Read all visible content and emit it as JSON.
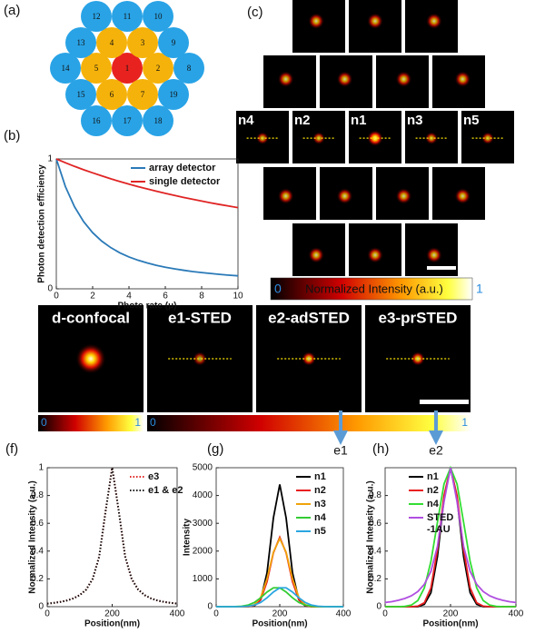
{
  "panel_labels": {
    "a": "(a)",
    "b": "(b)",
    "c": "(c)",
    "f": "(f)",
    "g": "(g)",
    "h": "(h)"
  },
  "detectors": [
    {
      "label": "1",
      "color": "#e8231f"
    },
    {
      "label": "2",
      "color": "#f5b20a"
    },
    {
      "label": "3",
      "color": "#f5b20a"
    },
    {
      "label": "4",
      "color": "#f5b20a"
    },
    {
      "label": "5",
      "color": "#f5b20a"
    },
    {
      "label": "6",
      "color": "#f5b20a"
    },
    {
      "label": "7",
      "color": "#f5b20a"
    },
    {
      "label": "8",
      "color": "#29a3e6"
    },
    {
      "label": "9",
      "color": "#29a3e6"
    },
    {
      "label": "10",
      "color": "#29a3e6"
    },
    {
      "label": "11",
      "color": "#29a3e6"
    },
    {
      "label": "12",
      "color": "#29a3e6"
    },
    {
      "label": "13",
      "color": "#29a3e6"
    },
    {
      "label": "14",
      "color": "#29a3e6"
    },
    {
      "label": "15",
      "color": "#29a3e6"
    },
    {
      "label": "16",
      "color": "#29a3e6"
    },
    {
      "label": "17",
      "color": "#29a3e6"
    },
    {
      "label": "18",
      "color": "#29a3e6"
    },
    {
      "label": "19",
      "color": "#29a3e6"
    }
  ],
  "psf_grid": {
    "labels": [
      "n4",
      "n2",
      "n1",
      "n3",
      "n5"
    ],
    "colorbar": {
      "min": "0",
      "title": "Normalized Intensity (a.u.)",
      "max": "1"
    }
  },
  "sted_images": {
    "labels": [
      "d-confocal",
      "e1-STED",
      "e2-adSTED",
      "e3-prSTED"
    ],
    "colorbars": [
      {
        "min": "0",
        "max": "1"
      },
      {
        "min": "0",
        "max": "1"
      }
    ],
    "arrows": [
      "e1",
      "e2"
    ]
  },
  "chart_data": [
    {
      "type": "line",
      "xlabel": "Photo rate (μ)",
      "ylabel": "Photon detection efficiency",
      "xlim": [
        0,
        10
      ],
      "ylim": [
        0,
        1
      ],
      "xticks": [
        0,
        2,
        4,
        6,
        8,
        10
      ],
      "yticks": [
        0,
        1
      ],
      "legend": "upper right",
      "x": [
        0,
        0.5,
        1,
        1.5,
        2,
        2.5,
        3,
        3.5,
        4,
        4.5,
        5,
        5.5,
        6,
        6.5,
        7,
        7.5,
        8,
        8.5,
        9,
        9.5,
        10
      ],
      "series": [
        {
          "name": "array detector",
          "color": "#2a7ab8",
          "values": [
            1,
            0.787,
            0.632,
            0.518,
            0.432,
            0.367,
            0.317,
            0.277,
            0.245,
            0.22,
            0.199,
            0.181,
            0.166,
            0.154,
            0.143,
            0.133,
            0.125,
            0.118,
            0.111,
            0.105,
            0.1
          ]
        },
        {
          "name": "single detector",
          "color": "#e02424",
          "values": [
            1,
            0.971,
            0.943,
            0.917,
            0.893,
            0.87,
            0.847,
            0.826,
            0.806,
            0.787,
            0.769,
            0.752,
            0.735,
            0.719,
            0.704,
            0.69,
            0.676,
            0.662,
            0.649,
            0.637,
            0.625
          ]
        }
      ]
    },
    {
      "type": "line",
      "xlabel": "Position(nm)",
      "ylabel": "Normalized Intensity (a.u.)",
      "xlim": [
        0,
        400
      ],
      "ylim": [
        0,
        1
      ],
      "xticks": [
        0,
        200,
        400
      ],
      "yticks": [
        0,
        0.2,
        0.4,
        0.6,
        0.8,
        1
      ],
      "legend": "upper right",
      "x": [
        0,
        20,
        40,
        60,
        80,
        100,
        120,
        140,
        160,
        180,
        200,
        220,
        240,
        260,
        280,
        300,
        320,
        340,
        360,
        380,
        400
      ],
      "series": [
        {
          "name": "e3",
          "color": "#e02424",
          "style": "dotted",
          "values": [
            0.022,
            0.027,
            0.034,
            0.044,
            0.059,
            0.083,
            0.123,
            0.2,
            0.36,
            0.692,
            1,
            0.692,
            0.36,
            0.2,
            0.123,
            0.083,
            0.059,
            0.044,
            0.034,
            0.027,
            0.022
          ]
        },
        {
          "name": "e1 & e2",
          "color": "#111111",
          "style": "dotted",
          "values": [
            0.022,
            0.027,
            0.034,
            0.044,
            0.059,
            0.083,
            0.123,
            0.2,
            0.36,
            0.692,
            1,
            0.692,
            0.36,
            0.2,
            0.123,
            0.083,
            0.059,
            0.044,
            0.034,
            0.027,
            0.022
          ]
        }
      ]
    },
    {
      "type": "line",
      "xlabel": "Position(nm)",
      "ylabel": "Intensity",
      "xlim": [
        0,
        400
      ],
      "ylim": [
        0,
        5000
      ],
      "xticks": [
        0,
        200,
        400
      ],
      "yticks": [
        0,
        1000,
        2000,
        3000,
        4000,
        5000
      ],
      "legend": "upper right",
      "x": [
        0,
        20,
        40,
        60,
        80,
        100,
        120,
        140,
        160,
        180,
        200,
        220,
        240,
        260,
        280,
        300,
        320,
        340,
        360,
        380,
        400
      ],
      "series": [
        {
          "name": "n1",
          "color": "#000000",
          "values": [
            0,
            0,
            0,
            0,
            0,
            1,
            26,
            246,
            1223,
            3194,
            4400,
            3194,
            1223,
            246,
            26,
            1,
            0,
            0,
            0,
            0,
            0
          ]
        },
        {
          "name": "n2",
          "color": "#e82020",
          "values": [
            0,
            0,
            0,
            0,
            0,
            0,
            42,
            250,
            900,
            1937,
            2500,
            1937,
            900,
            250,
            42,
            0,
            0,
            0,
            0,
            0,
            0
          ]
        },
        {
          "name": "n3",
          "color": "#f0a30a",
          "values": [
            0,
            0,
            0,
            0,
            0,
            10,
            69,
            332,
            1007,
            1961,
            2450,
            1961,
            1007,
            332,
            69,
            10,
            0,
            0,
            0,
            0,
            0
          ]
        },
        {
          "name": "n4",
          "color": "#33cc33",
          "values": [
            0,
            0,
            0,
            4,
            16,
            56,
            151,
            321,
            528,
            678,
            678,
            528,
            321,
            151,
            56,
            16,
            4,
            0,
            0,
            0,
            0
          ]
        },
        {
          "name": "n5",
          "color": "#2aa6e0",
          "values": [
            0,
            0,
            0,
            0,
            4,
            16,
            56,
            151,
            321,
            528,
            678,
            678,
            528,
            321,
            151,
            56,
            16,
            4,
            0,
            0,
            0
          ]
        }
      ]
    },
    {
      "type": "line",
      "xlabel": "Position(nm)",
      "ylabel": "Normalized Intensity (a.u.)",
      "xlim": [
        0,
        400
      ],
      "ylim": [
        0,
        1
      ],
      "xticks": [
        0,
        200,
        400
      ],
      "yticks": [
        0,
        0.2,
        0.4,
        0.6,
        0.8
      ],
      "legend": "upper right",
      "x": [
        0,
        20,
        40,
        60,
        80,
        100,
        120,
        140,
        160,
        180,
        200,
        220,
        240,
        260,
        280,
        300,
        320,
        340,
        360,
        380,
        400
      ],
      "series": [
        {
          "name": "n1",
          "color": "#000000",
          "values": [
            0,
            0,
            0,
            0,
            0,
            0,
            0.017,
            0.1,
            0.36,
            0.775,
            1,
            0.775,
            0.36,
            0.1,
            0.017,
            0,
            0,
            0,
            0,
            0,
            0
          ]
        },
        {
          "name": "n2",
          "color": "#e82020",
          "values": [
            0,
            0,
            0,
            0,
            0,
            0.004,
            0.028,
            0.135,
            0.41,
            0.8,
            1,
            0.8,
            0.41,
            0.135,
            0.028,
            0.004,
            0,
            0,
            0,
            0,
            0
          ]
        },
        {
          "name": "n4",
          "color": "#33dd33",
          "values": [
            0,
            0,
            0,
            0.002,
            0.011,
            0.044,
            0.135,
            0.325,
            0.607,
            0.882,
            1,
            0.882,
            0.607,
            0.325,
            0.135,
            0.044,
            0.011,
            0.002,
            0,
            0,
            0
          ]
        },
        {
          "name": "STED\n-1AU",
          "color": "#b04ee0",
          "values": [
            0.03,
            0.036,
            0.046,
            0.059,
            0.078,
            0.109,
            0.161,
            0.254,
            0.434,
            0.754,
            1,
            0.754,
            0.434,
            0.254,
            0.161,
            0.109,
            0.078,
            0.059,
            0.046,
            0.036,
            0.03
          ]
        }
      ]
    }
  ]
}
